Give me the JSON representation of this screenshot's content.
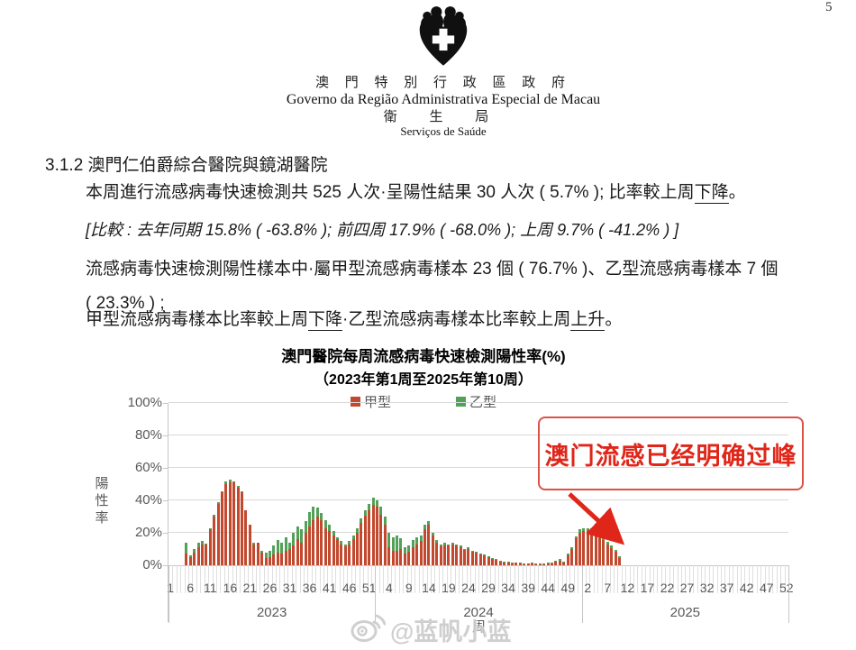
{
  "page": {
    "number": "5"
  },
  "header": {
    "logo_icon": "macau-health-bureau-emblem",
    "gov_zh": "澳 門 特 別 行 政 區 政 府",
    "gov_pt": "Governo da Região Administrativa Especial de Macau",
    "bureau_zh": "衛 生 局",
    "bureau_pt": "Serviços de Saúde"
  },
  "section": {
    "heading": "3.1.2 澳門仁伯爵綜合醫院與鏡湖醫院",
    "p1_before": "本周進行流感病毒快速檢測共 525 人次·呈陽性結果 30 人次 ( 5.7% ); 比率較上周",
    "p1_underlined": "下降",
    "p1_after": "。",
    "p2_compare": "[比較 : 去年同期 15.8% ( -63.8% ); 前四周 17.9% ( -68.0% ); 上周 9.7% ( -41.2% ) ]",
    "p3_line1": "流感病毒快速檢測陽性樣本中·屬甲型流感病毒樣本 23 個 ( 76.7% )、乙型流感病毒樣本 7 個",
    "p3_line2": "( 23.3% ) ;",
    "p4_before": "甲型流感病毒樣本比率較上周",
    "p4_underlined1": "下降",
    "p4_mid": "·乙型流感病毒樣本比率較上周",
    "p4_underlined2": "上升",
    "p4_after": "。"
  },
  "chart_data": {
    "type": "bar",
    "stacked": true,
    "title": "澳門醫院每周流感病毒快速檢測陽性率(%)",
    "subtitle": "（2023年第1周至2025年第10周）",
    "ylabel": "陽性率",
    "xlabel": "周",
    "ylim": [
      0,
      100
    ],
    "yticks": [
      0,
      20,
      40,
      60,
      80,
      100
    ],
    "ytick_suffix": "%",
    "grid": true,
    "legend_position": "top",
    "axis_slots": 156,
    "tick_every": 5,
    "years": [
      {
        "label": "2023",
        "weeks": 52
      },
      {
        "label": "2024",
        "weeks": 52
      },
      {
        "label": "2025",
        "weeks": 52
      }
    ],
    "weeks_plotted": 114,
    "series": [
      {
        "name": "甲型",
        "color": "#c2482e",
        "values": [
          0,
          0,
          0,
          0,
          7,
          5,
          8,
          11,
          13,
          13,
          22,
          30,
          38,
          45,
          50,
          51,
          51,
          48,
          45,
          34,
          25,
          13,
          14,
          8,
          4.5,
          5,
          6.5,
          8,
          7.5,
          9,
          10,
          12,
          16,
          14,
          20,
          24,
          28,
          30,
          28,
          23,
          21,
          18.5,
          16,
          13,
          11.5,
          13,
          16,
          20,
          26,
          30.5,
          34,
          37,
          36,
          31,
          25,
          11,
          9,
          9,
          10,
          7.5,
          8.5,
          11,
          13,
          15,
          22,
          25,
          18.5,
          14,
          11.5,
          12.5,
          12,
          13,
          12,
          11,
          9.5,
          10,
          8.5,
          8,
          7,
          6,
          5,
          4,
          3.2,
          2.5,
          2,
          1.8,
          1.5,
          1.5,
          1.2,
          1,
          1,
          1.5,
          1,
          0.8,
          1,
          1.2,
          1.3,
          2.3,
          3,
          2,
          6,
          10,
          16.5,
          20,
          21,
          21.5,
          20.5,
          21,
          18.5,
          15.5,
          13,
          10.5,
          8.2,
          4.4
        ]
      },
      {
        "name": "乙型",
        "color": "#53a158",
        "values": [
          0,
          0,
          0,
          0,
          7,
          1,
          2,
          3,
          2,
          0.5,
          1,
          1,
          1,
          0.5,
          1.5,
          2,
          0.5,
          1,
          0.5,
          0,
          0,
          1,
          0,
          1,
          3.5,
          4,
          5.5,
          7.5,
          6.5,
          8.5,
          4,
          8,
          8,
          8,
          7.5,
          9,
          8,
          5.5,
          4.5,
          5,
          4,
          2.5,
          1.5,
          2,
          1.5,
          2,
          2.5,
          3,
          3,
          3.5,
          4,
          4.5,
          4,
          5,
          5,
          9,
          8.5,
          9.5,
          6.5,
          3.5,
          3.5,
          4.8,
          4.5,
          3.5,
          3,
          2,
          1.5,
          1.5,
          1.5,
          1.5,
          1,
          1,
          1,
          1,
          0.5,
          1,
          0.5,
          0.5,
          0.5,
          0.5,
          0.5,
          0.5,
          0.5,
          0.3,
          0.2,
          0.2,
          0.2,
          0,
          0.3,
          0.2,
          0,
          0.3,
          0.2,
          0.2,
          0.2,
          0.3,
          0.2,
          0.5,
          0.7,
          0.2,
          1,
          1,
          1.5,
          2,
          2,
          1.5,
          2.5,
          2,
          1.5,
          1.5,
          1.5,
          1.5,
          1.5,
          1.3
        ]
      }
    ]
  },
  "annotation": {
    "text": "澳门流感已经明确过峰",
    "color": "#e02619"
  },
  "watermark": {
    "icon": "weibo-icon",
    "text": "@蓝帆小蓝"
  }
}
